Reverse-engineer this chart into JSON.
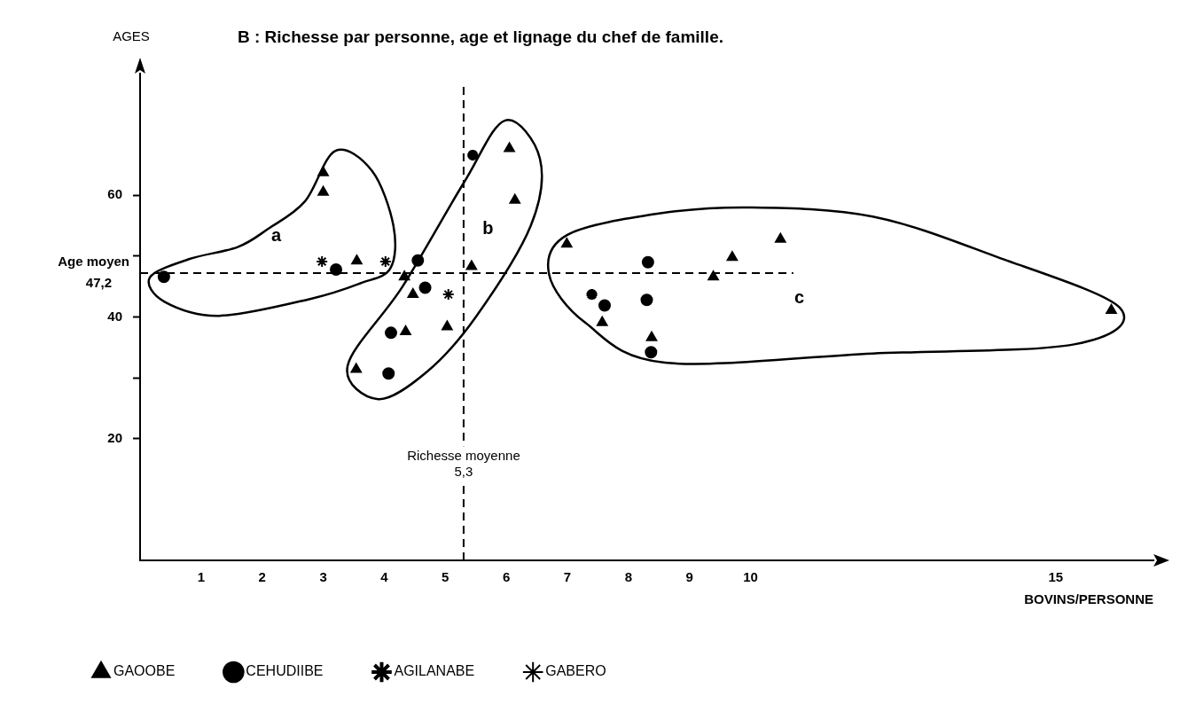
{
  "chart_data": {
    "type": "scatter",
    "title": "B : Richesse par personne, age et lignage du chef de famille.",
    "xlabel": "BOVINS/PERSONNE",
    "ylabel": "AGES",
    "xlim": [
      0,
      16.6
    ],
    "ylim": [
      0,
      80
    ],
    "xticks": [
      {
        "value": 0,
        "label": null
      },
      1,
      2,
      3,
      4,
      5,
      6,
      7,
      8,
      9,
      10,
      15
    ],
    "yticks": [
      20,
      {
        "value": 30,
        "label": null
      },
      40,
      {
        "value": 50,
        "label": null
      },
      60
    ],
    "grid": false,
    "legend": "bottom left",
    "series": [
      {
        "name": "GAOOBE",
        "color": "#000000",
        "marker": "triangle",
        "x": [
          3.0,
          3.0,
          3.55,
          4.33,
          4.47,
          4.35,
          5.03,
          3.54,
          5.43,
          6.05,
          6.14,
          6.99,
          9.7,
          9.39,
          10.49,
          7.57,
          8.38,
          15.91
        ],
        "values": [
          63.7,
          60.5,
          49.2,
          46.6,
          43.7,
          37.6,
          38.4,
          31.4,
          48.3,
          67.7,
          59.2,
          52.0,
          49.8,
          46.6,
          52.8,
          39.1,
          36.6,
          41.1
        ]
      },
      {
        "name": "CEHUDIIBE",
        "color": "#000000",
        "marker": "circle",
        "x": [
          0.39,
          3.21,
          4.55,
          4.67,
          4.11,
          4.07,
          8.32,
          7.61,
          8.3,
          8.37
        ],
        "values": [
          46.6,
          47.8,
          49.3,
          44.8,
          37.4,
          30.7,
          49.0,
          41.9,
          42.8,
          34.2
        ]
      },
      {
        "name": "AGILANABE",
        "color": "#000000",
        "marker": "cross",
        "x": [
          5.45,
          7.4
        ],
        "values": [
          66.6,
          43.7
        ]
      },
      {
        "name": "GABERO",
        "color": "#000000",
        "marker": "cross",
        "x": [
          2.98,
          4.02,
          5.05
        ],
        "values": [
          49.1,
          49.1,
          43.7
        ]
      }
    ],
    "ref_lines": [
      {
        "axis": "x",
        "value": 5.3,
        "label": "Richesse moyenne\n5,3",
        "line_style": "dashed",
        "color": "#000000"
      },
      {
        "axis": "y",
        "value": 47.2,
        "label": "Age moyen\n47,2",
        "line_style": "dashed",
        "color": "#000000"
      }
    ],
    "annotations": [
      "a",
      "b",
      "c"
    ]
  }
}
